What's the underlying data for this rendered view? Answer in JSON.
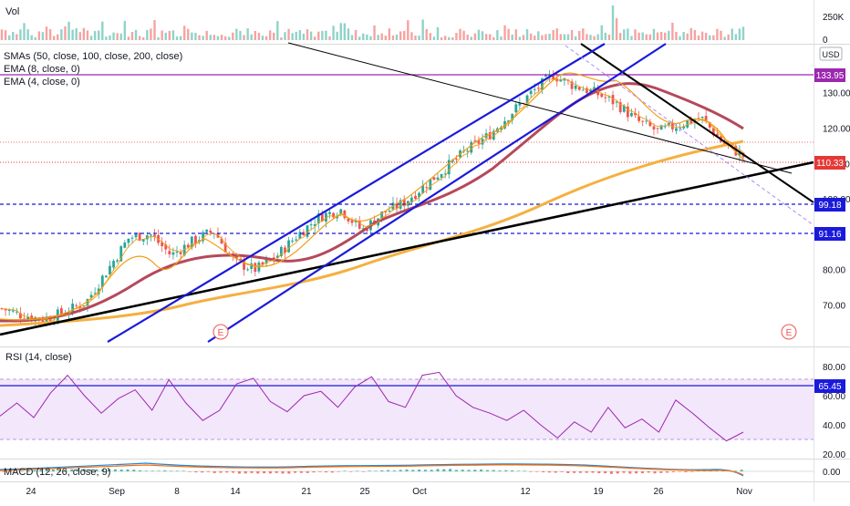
{
  "vol_pane": {
    "title": "Vol",
    "scale_labels": [
      "250K",
      "0"
    ]
  },
  "price_pane": {
    "legend": [
      "SMAs (50, close, 100, close, 200, close)",
      "EMA (8, close, 0)",
      "EMA (4, close, 0)"
    ],
    "currency": "USD",
    "badges": [
      {
        "label": "133.95",
        "color": "#9c27b0"
      },
      {
        "label": "110.33",
        "color": "#e53935"
      },
      {
        "label": "99.18",
        "color": "#1a1adb"
      },
      {
        "label": "91.16",
        "color": "#1a1adb"
      }
    ],
    "earnings_marker": "E"
  },
  "rsi_pane": {
    "title": "RSI (14, close)",
    "badge": "65.45"
  },
  "macd_pane": {
    "title": "MACD (12, 26, close, 9)",
    "badge": "0.00"
  },
  "x_axis": {
    "ticks": [
      "24",
      "Sep",
      "8",
      "14",
      "21",
      "25",
      "Oct",
      "12",
      "19",
      "26",
      "Nov"
    ]
  },
  "colors": {
    "up": "#26a69a",
    "down": "#ef5350",
    "sma_red": "#b5495b",
    "sma_orange": "#f5b041",
    "ema": "#f39c12",
    "channel": "#1a1adb",
    "resist": "#9c27b0",
    "rsi": "#9c27b0"
  },
  "chart_data": [
    {
      "type": "candlestick",
      "title": "",
      "x": [
        "24",
        "Sep",
        "8",
        "14",
        "21",
        "25",
        "Oct",
        "12",
        "19",
        "26",
        "Nov"
      ],
      "y_ticks": [
        70.0,
        80.0,
        90.0,
        100.0,
        110.0,
        120.0,
        130.0
      ],
      "ylim": [
        62,
        140
      ],
      "approx_close_path": [
        69,
        67,
        66,
        68,
        71,
        80,
        89,
        90,
        84,
        88,
        91,
        82,
        80,
        84,
        90,
        95,
        97,
        91,
        96,
        99,
        104,
        109,
        114,
        118,
        124,
        130,
        135,
        132,
        130,
        127,
        122,
        119,
        121,
        123,
        116,
        112
      ],
      "horizontal_levels": [
        133.95,
        110.33,
        99.18,
        91.16
      ],
      "series": [
        {
          "name": "SMAs (50, close, 100, close, 200, close)"
        },
        {
          "name": "EMA (8, close, 0)"
        },
        {
          "name": "EMA (4, close, 0)"
        }
      ]
    },
    {
      "type": "line",
      "title": "RSI (14, close)",
      "y_ticks": [
        20.0,
        40.0,
        60.0,
        80.0
      ],
      "ylim": [
        15,
        90
      ],
      "values": [
        46,
        55,
        45,
        62,
        74,
        60,
        48,
        58,
        64,
        50,
        71,
        55,
        43,
        50,
        68,
        72,
        56,
        49,
        60,
        63,
        52,
        66,
        73,
        56,
        52,
        74,
        76,
        60,
        52,
        48,
        43,
        50,
        40,
        31,
        42,
        35,
        52,
        38,
        44,
        35,
        57,
        48,
        38,
        29,
        35
      ]
    },
    {
      "type": "bar",
      "title": "MACD (12, 26, close, 9)",
      "y_ticks": [
        0.0
      ]
    }
  ]
}
